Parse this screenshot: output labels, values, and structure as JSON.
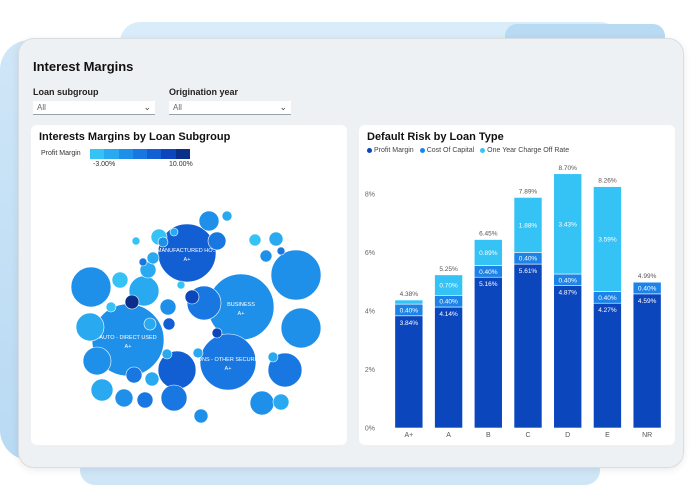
{
  "page": {
    "title": "Interest Margins"
  },
  "filters": [
    {
      "label": "Loan subgroup",
      "value": "All"
    },
    {
      "label": "Origination year",
      "value": "All"
    }
  ],
  "bubble_chart": {
    "title": "Interests Margins by Loan Subgroup",
    "legend_title": "Profit Margin",
    "legend_min": "-3.00%",
    "legend_max": "10.00%",
    "legend_colors": [
      "#35c2f5",
      "#28a9f0",
      "#1e90ea",
      "#1877e0",
      "#125ed3",
      "#0b46bd",
      "#0a2f8a"
    ],
    "labeled_bubbles": [
      {
        "name": "MANUFACTURED HO...",
        "grade": "A+"
      },
      {
        "name": "BUSINESS",
        "grade": "A+"
      },
      {
        "name": "AUTO - DIRECT USED",
        "grade": "A+"
      },
      {
        "name": "CONS - OTHER SECURED",
        "grade": "A+"
      }
    ]
  },
  "bar_chart": {
    "title": "Default Risk by Loan Type",
    "legend": [
      {
        "name": "Profit Margin",
        "color": "#0b46bd"
      },
      {
        "name": "Cost Of Capital",
        "color": "#1c84e8"
      },
      {
        "name": "One Year Charge Off Rate",
        "color": "#35c2f5"
      }
    ]
  },
  "chart_data": {
    "type": "bar",
    "stacked": true,
    "title": "Default Risk by Loan Type",
    "categories": [
      "A+",
      "A",
      "B",
      "C",
      "D",
      "E",
      "NR"
    ],
    "series": [
      {
        "name": "Profit Margin",
        "values": [
          3.84,
          4.14,
          5.16,
          5.61,
          4.87,
          4.27,
          4.59
        ],
        "labels": [
          "3.84%",
          "4.14%",
          "5.16%",
          "5.61%",
          "4.87%",
          "4.27%",
          "4.59%"
        ]
      },
      {
        "name": "Cost Of Capital",
        "values": [
          0.4,
          0.4,
          0.4,
          0.4,
          0.4,
          0.4,
          0.4
        ],
        "labels": [
          "0.40%",
          "0.40%",
          "0.40%",
          "0.40%",
          "0.40%",
          "0.40%",
          "0.40%"
        ]
      },
      {
        "name": "One Year Charge Off Rate",
        "values": [
          0.14,
          0.7,
          0.89,
          1.88,
          3.43,
          3.59,
          0.0
        ],
        "labels": [
          "",
          "0.70%",
          "0.89%",
          "1.88%",
          "3.43%",
          "3.59%",
          ""
        ]
      }
    ],
    "totals": [
      "4.38%",
      "5.25%",
      "6.45%",
      "7.89%",
      "8.70%",
      "8.26%",
      "4.99%"
    ],
    "y_ticks": [
      "0%",
      "2%",
      "4%",
      "6%",
      "8%"
    ],
    "ylim": [
      0,
      9
    ],
    "grid": false,
    "legend_position": "top-left"
  }
}
